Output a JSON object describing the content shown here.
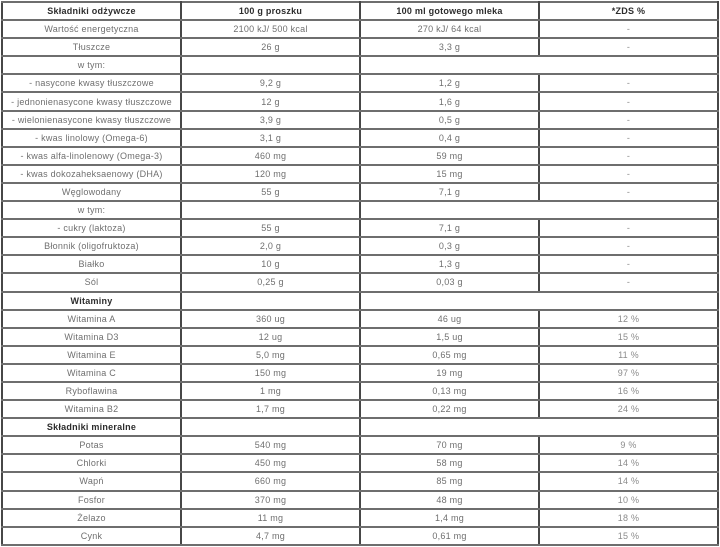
{
  "table": {
    "headers": [
      "Składniki odżywcze",
      "100 g proszku",
      "100 ml gotowego mleka",
      "*ZDS %"
    ],
    "rows": [
      {
        "type": "data",
        "name": "Wartość energetyczna",
        "powder": "2100 kJ/ 500 kcal",
        "milk": "270 kJ/ 64 kcal",
        "zds": "-"
      },
      {
        "type": "data",
        "name": "Tłuszcze",
        "powder": "26 g",
        "milk": "3,3 g",
        "zds": "-"
      },
      {
        "type": "subhead",
        "name": "w tym:"
      },
      {
        "type": "data",
        "name": "- nasycone kwasy tłuszczowe",
        "powder": "9,2 g",
        "milk": "1,2 g",
        "zds": "-"
      },
      {
        "type": "data",
        "name": "- jednonienasycone kwasy tłuszczowe",
        "powder": "12 g",
        "milk": "1,6 g",
        "zds": "-"
      },
      {
        "type": "data",
        "name": "- wielonienasycone kwasy tłuszczowe",
        "powder": "3,9 g",
        "milk": "0,5 g",
        "zds": "-"
      },
      {
        "type": "data",
        "name": "- kwas linolowy (Omega-6)",
        "powder": "3,1 g",
        "milk": "0,4 g",
        "zds": "-"
      },
      {
        "type": "data",
        "name": "- kwas alfa-linolenowy (Omega-3)",
        "powder": "460 mg",
        "milk": "59 mg",
        "zds": "-"
      },
      {
        "type": "data",
        "name": "- kwas dokozaheksaenowy (DHA)",
        "powder": "120 mg",
        "milk": "15 mg",
        "zds": "-"
      },
      {
        "type": "data",
        "name": "Węglowodany",
        "powder": "55 g",
        "milk": "7,1 g",
        "zds": "-"
      },
      {
        "type": "subhead",
        "name": "w tym:"
      },
      {
        "type": "data",
        "name": "- cukry (laktoza)",
        "powder": "55 g",
        "milk": "7,1 g",
        "zds": "-"
      },
      {
        "type": "data",
        "name": "Błonnik (oligofruktoza)",
        "powder": "2,0 g",
        "milk": "0,3 g",
        "zds": "-"
      },
      {
        "type": "data",
        "name": "Białko",
        "powder": "10 g",
        "milk": "1,3 g",
        "zds": "-"
      },
      {
        "type": "data",
        "name": "Sól",
        "powder": "0,25 g",
        "milk": "0,03 g",
        "zds": "-"
      },
      {
        "type": "section",
        "name": "Witaminy"
      },
      {
        "type": "data",
        "name": "Witamina A",
        "powder": "360 ug",
        "milk": "46 ug",
        "zds": "12 %"
      },
      {
        "type": "data",
        "name": "Witamina D3",
        "powder": "12 ug",
        "milk": "1,5 ug",
        "zds": "15 %"
      },
      {
        "type": "data",
        "name": "Witamina E",
        "powder": "5,0 mg",
        "milk": "0,65 mg",
        "zds": "11 %"
      },
      {
        "type": "data",
        "name": "Witamina C",
        "powder": "150 mg",
        "milk": "19 mg",
        "zds": "97 %"
      },
      {
        "type": "data",
        "name": "Ryboflawina",
        "powder": "1 mg",
        "milk": "0,13 mg",
        "zds": "16 %"
      },
      {
        "type": "data",
        "name": "Witamina B2",
        "powder": "1,7 mg",
        "milk": "0,22 mg",
        "zds": "24 %"
      },
      {
        "type": "section",
        "name": "Składniki mineralne"
      },
      {
        "type": "data",
        "name": "Potas",
        "powder": "540 mg",
        "milk": "70 mg",
        "zds": "9 %"
      },
      {
        "type": "data",
        "name": "Chlorki",
        "powder": "450 mg",
        "milk": "58 mg",
        "zds": "14 %"
      },
      {
        "type": "data",
        "name": "Wapń",
        "powder": "660 mg",
        "milk": "85 mg",
        "zds": "14 %"
      },
      {
        "type": "data",
        "name": "Fosfor",
        "powder": "370 mg",
        "milk": "48 mg",
        "zds": "10 %"
      },
      {
        "type": "data",
        "name": "Żelazo",
        "powder": "11 mg",
        "milk": "1,4 mg",
        "zds": "18 %"
      },
      {
        "type": "data",
        "name": "Cynk",
        "powder": "4,7 mg",
        "milk": "0,61 mg",
        "zds": "15 %"
      }
    ]
  }
}
